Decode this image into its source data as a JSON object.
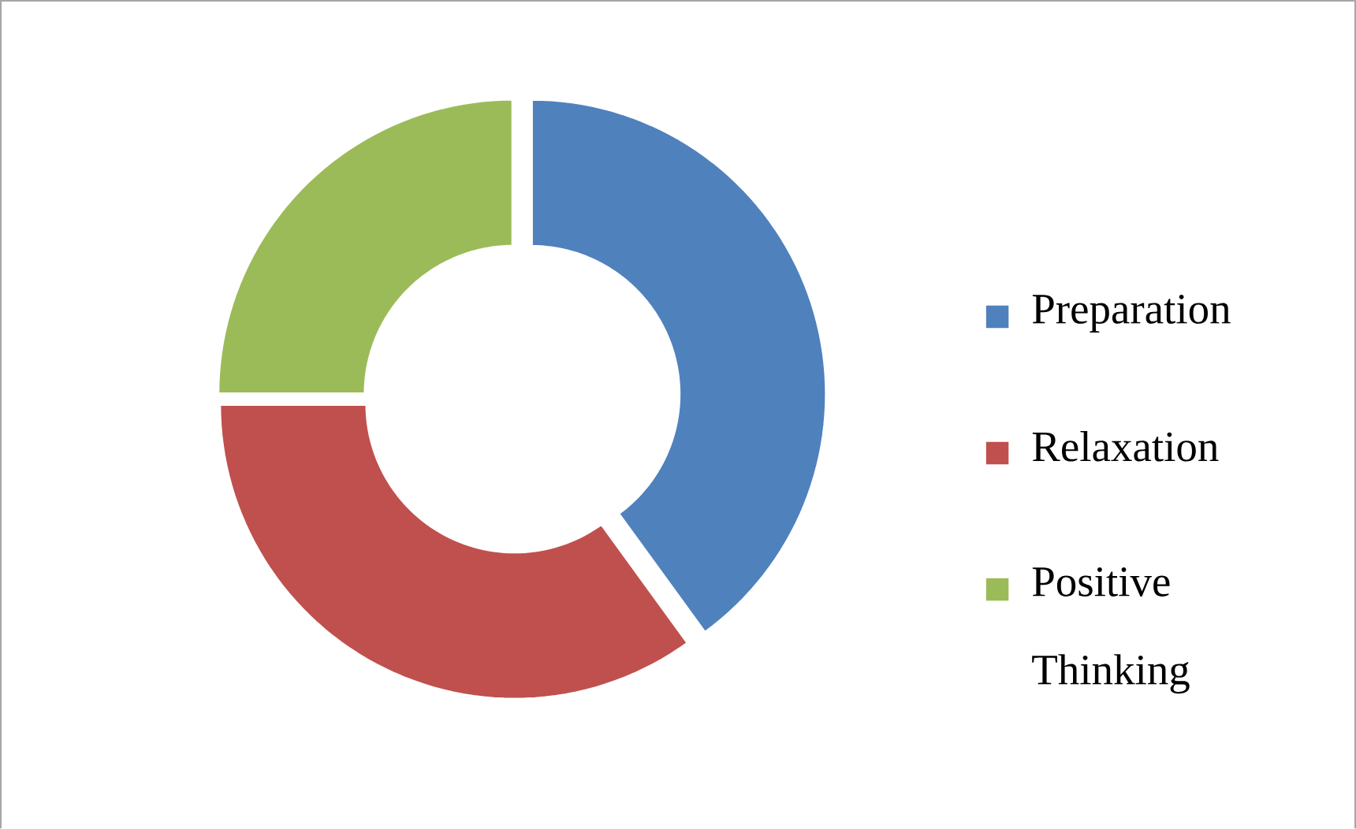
{
  "chart_data": {
    "type": "donut",
    "categories": [
      "Preparation",
      "Relaxation",
      "Positive Thinking"
    ],
    "values": [
      40,
      35,
      25
    ],
    "colors": [
      "#4f81bd",
      "#c0504d",
      "#9bbb59"
    ],
    "legend": "right"
  }
}
